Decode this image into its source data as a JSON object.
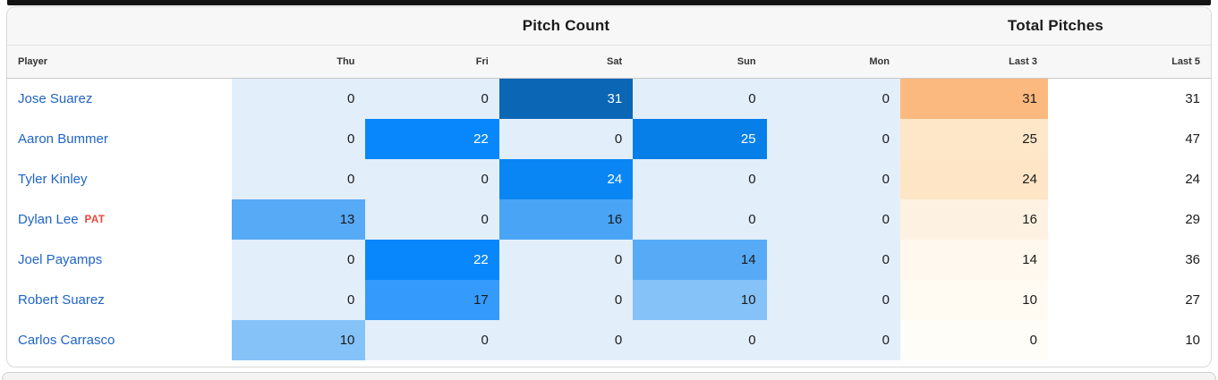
{
  "card": {
    "groups": [
      {
        "label": "Pitch Count"
      },
      {
        "label": "Total Pitches"
      }
    ],
    "columns": [
      "Player",
      "Thu",
      "Fri",
      "Sat",
      "Sun",
      "Mon",
      "Last 3",
      "Last 5"
    ],
    "rows": [
      {
        "player": "Jose Suarez",
        "badge": "",
        "days": [
          0,
          0,
          31,
          0,
          0
        ],
        "last3": 31,
        "last5": 31
      },
      {
        "player": "Aaron Bummer",
        "badge": "",
        "days": [
          0,
          22,
          0,
          25,
          0
        ],
        "last3": 25,
        "last5": 47
      },
      {
        "player": "Tyler Kinley",
        "badge": "",
        "days": [
          0,
          0,
          24,
          0,
          0
        ],
        "last3": 24,
        "last5": 24
      },
      {
        "player": "Dylan Lee",
        "badge": "PAT",
        "days": [
          13,
          0,
          16,
          0,
          0
        ],
        "last3": 16,
        "last5": 29
      },
      {
        "player": "Joel Payamps",
        "badge": "",
        "days": [
          0,
          22,
          0,
          14,
          0
        ],
        "last3": 14,
        "last5": 36
      },
      {
        "player": "Robert Suarez",
        "badge": "",
        "days": [
          0,
          17,
          0,
          10,
          0
        ],
        "last3": 10,
        "last5": 27
      },
      {
        "player": "Carlos Carrasco",
        "badge": "",
        "days": [
          10,
          0,
          0,
          0,
          0
        ],
        "last3": 0,
        "last5": 10
      }
    ],
    "colors": {
      "heat_blue": {
        "0": "#e3eefb",
        "10": "#85c2f8",
        "13": "#57aaf6",
        "14": "#57aaf6",
        "16": "#49a4f6",
        "17": "#349bfc",
        "22": "#0787fb",
        "24": "#0a86f4",
        "25": "#077fe8",
        "31": "#0b66b5"
      },
      "heat_orange": {
        "0": "#fffdf8",
        "10": "#fffaf2",
        "14": "#fff8ee",
        "16": "#fdf2e1",
        "24": "#fee5c6",
        "25": "#fee6c8",
        "31": "#fbb97f"
      },
      "white_text_min": 22,
      "link": "#2064c8",
      "badge": "#e8463c"
    }
  }
}
